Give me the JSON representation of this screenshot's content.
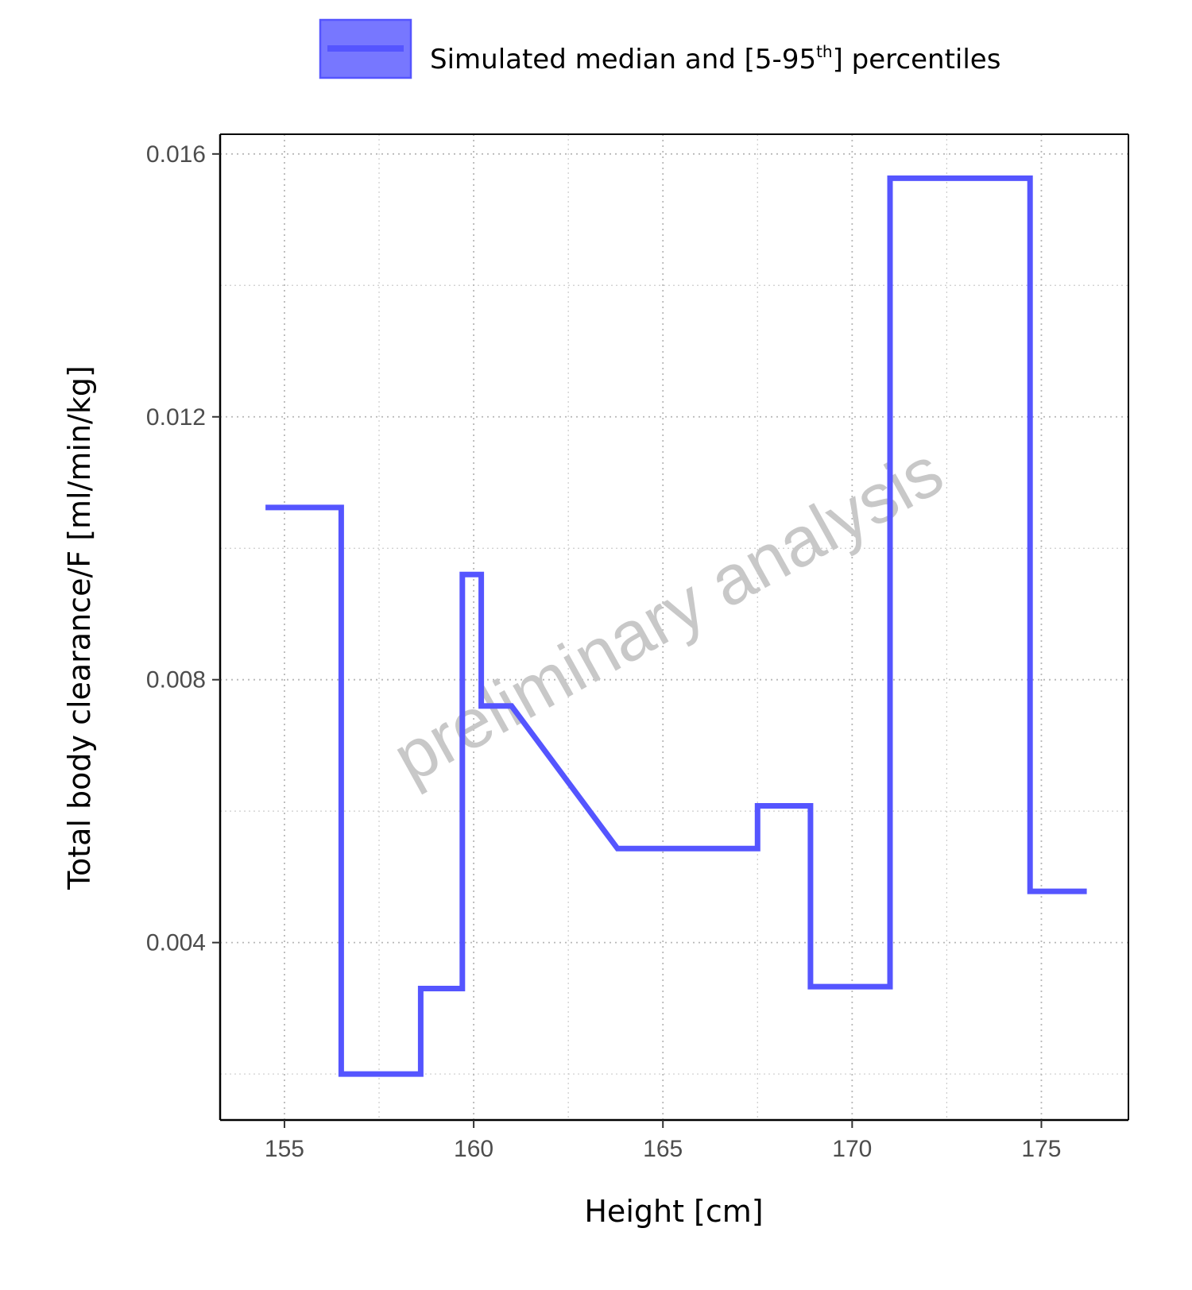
{
  "chart_data": {
    "type": "line",
    "line_style": "step",
    "title": "",
    "xlabel": "Height [cm]",
    "ylabel": "Total body clearance/F [ml/min/kg]",
    "xlim": [
      153.3,
      177.3
    ],
    "ylim": [
      0.0013,
      0.0163
    ],
    "xticks": [
      155,
      160,
      165,
      170,
      175
    ],
    "xtick_labels": [
      "155",
      "160",
      "165",
      "170",
      "175"
    ],
    "yticks": [
      0.004,
      0.008,
      0.012,
      0.016
    ],
    "ytick_labels": [
      "0.004",
      "0.008",
      "0.012",
      "0.016"
    ],
    "x_minor_grid": [
      157.5,
      162.5,
      167.5,
      172.5
    ],
    "y_minor_grid": [
      0.002,
      0.006,
      0.01,
      0.014
    ],
    "grid": true,
    "legend": {
      "position": "top",
      "label_main": "Simulated median and [5-95",
      "label_sup": "th",
      "label_end": "] percentiles"
    },
    "watermark": "preliminary analysis",
    "colors": {
      "series": "#5555ff",
      "band_fill": "#7777ff",
      "grid": "#cccccc",
      "axis": "#000000"
    },
    "series": [
      {
        "name": "Simulated median and [5-95th] percentiles",
        "points": [
          [
            154.5,
            0.01062
          ],
          [
            156.5,
            0.01062
          ],
          [
            156.5,
            0.002
          ],
          [
            158.6,
            0.002
          ],
          [
            158.6,
            0.0033
          ],
          [
            159.7,
            0.0033
          ],
          [
            159.7,
            0.0096
          ],
          [
            160.2,
            0.0096
          ],
          [
            160.2,
            0.0076
          ],
          [
            161.0,
            0.0076
          ],
          [
            163.8,
            0.00543
          ],
          [
            167.5,
            0.00543
          ],
          [
            167.5,
            0.00608
          ],
          [
            168.9,
            0.00608
          ],
          [
            168.9,
            0.00333
          ],
          [
            171.0,
            0.00333
          ],
          [
            171.0,
            0.01563
          ],
          [
            174.7,
            0.01563
          ],
          [
            174.7,
            0.00478
          ],
          [
            176.2,
            0.00478
          ]
        ]
      }
    ]
  }
}
